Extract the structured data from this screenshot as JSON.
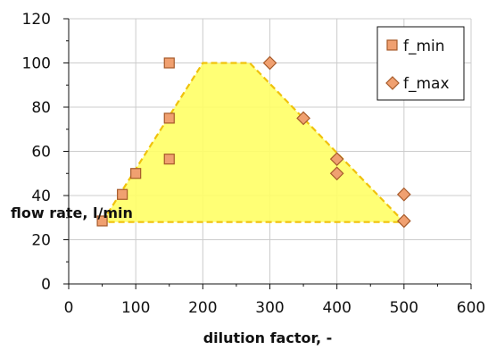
{
  "chart_data": {
    "type": "scatter",
    "title": "",
    "xlabel": "dilution factor, -",
    "ylabel": "flow rate, l/min",
    "xlim": [
      0,
      600
    ],
    "ylim": [
      0,
      120
    ],
    "x_ticks": [
      0,
      100,
      200,
      300,
      400,
      500,
      600
    ],
    "y_ticks": [
      0,
      20,
      40,
      60,
      80,
      100,
      120
    ],
    "grid": true,
    "legend_position": "top-right",
    "region": {
      "fill_color": "#ffff66",
      "edge_color": "#f0c20c",
      "points": [
        [
          50,
          28
        ],
        [
          200,
          100
        ],
        [
          270,
          100
        ],
        [
          500,
          28
        ]
      ]
    },
    "series": [
      {
        "name": "f_min",
        "marker": "square",
        "color": "#f0a070",
        "edge_color": "#a65a2a",
        "x": [
          50,
          80,
          100,
          150,
          150,
          150
        ],
        "y": [
          28.5,
          40.5,
          50,
          56.5,
          75,
          100
        ]
      },
      {
        "name": "f_max",
        "marker": "diamond",
        "color": "#f0a070",
        "edge_color": "#a65a2a",
        "x": [
          300,
          350,
          400,
          400,
          500,
          500
        ],
        "y": [
          100,
          75,
          56.5,
          50,
          40.5,
          28.5
        ]
      }
    ]
  }
}
